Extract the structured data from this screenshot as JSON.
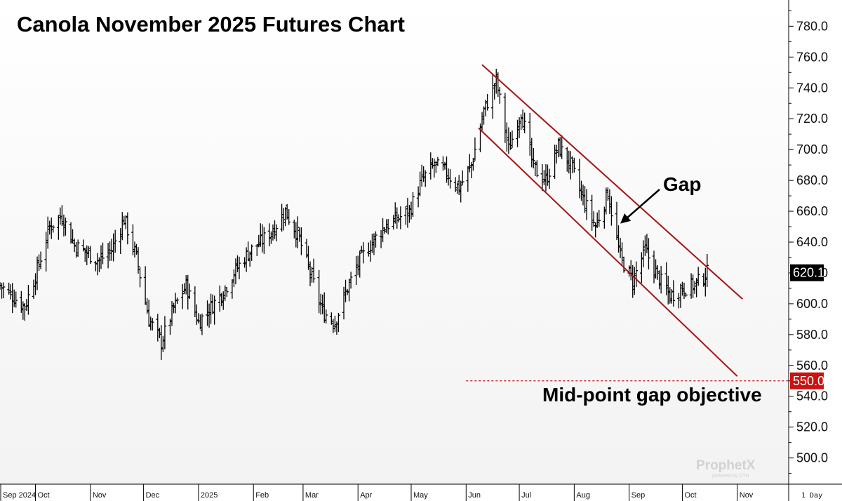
{
  "chart_data": {
    "type": "ohlc",
    "title": "Canola November 2025 Futures Chart",
    "interval_label": "1 Day",
    "ylim": [
      483,
      797
    ],
    "y_ticks": [
      500,
      520,
      540,
      560,
      580,
      600,
      620,
      640,
      660,
      680,
      700,
      720,
      740,
      760,
      780
    ],
    "y_tick_labels": [
      "500.0",
      "520.0",
      "540.0",
      "560.0",
      "580.0",
      "600.0",
      "620.0",
      "640.0",
      "660.0",
      "680.0",
      "700.0",
      "720.0",
      "740.0",
      "760.0",
      "780.0"
    ],
    "x_range": [
      "2024-09-11",
      "2025-11-30"
    ],
    "x_ticks": [
      {
        "date": "2024-09-01",
        "label": "Sep 2024"
      },
      {
        "date": "2024-10-01",
        "label": "Oct"
      },
      {
        "date": "2024-11-01",
        "label": "Nov"
      },
      {
        "date": "2024-12-01",
        "label": "Dec"
      },
      {
        "date": "2025-01-01",
        "label": "2025"
      },
      {
        "date": "2025-02-01",
        "label": "Feb"
      },
      {
        "date": "2025-03-01",
        "label": "Mar"
      },
      {
        "date": "2025-04-01",
        "label": "Apr"
      },
      {
        "date": "2025-05-01",
        "label": "May"
      },
      {
        "date": "2025-06-01",
        "label": "Jun"
      },
      {
        "date": "2025-07-01",
        "label": "Jul"
      },
      {
        "date": "2025-08-01",
        "label": "Aug"
      },
      {
        "date": "2025-09-01",
        "label": "Sep"
      },
      {
        "date": "2025-10-01",
        "label": "Oct"
      },
      {
        "date": "2025-11-01",
        "label": "Nov"
      }
    ],
    "approx_closes": [
      {
        "date": "2024-09-11",
        "close": 612
      },
      {
        "date": "2024-09-18",
        "close": 605
      },
      {
        "date": "2024-09-25",
        "close": 598
      },
      {
        "date": "2024-10-02",
        "close": 622
      },
      {
        "date": "2024-10-09",
        "close": 650
      },
      {
        "date": "2024-10-16",
        "close": 657
      },
      {
        "date": "2024-10-23",
        "close": 638
      },
      {
        "date": "2024-10-30",
        "close": 633
      },
      {
        "date": "2024-11-06",
        "close": 628
      },
      {
        "date": "2024-11-13",
        "close": 635
      },
      {
        "date": "2024-11-20",
        "close": 655
      },
      {
        "date": "2024-11-27",
        "close": 630
      },
      {
        "date": "2024-12-04",
        "close": 590
      },
      {
        "date": "2024-12-11",
        "close": 575
      },
      {
        "date": "2024-12-18",
        "close": 597
      },
      {
        "date": "2024-12-25",
        "close": 612
      },
      {
        "date": "2025-01-01",
        "close": 588
      },
      {
        "date": "2025-01-08",
        "close": 598
      },
      {
        "date": "2025-01-15",
        "close": 608
      },
      {
        "date": "2025-01-22",
        "close": 622
      },
      {
        "date": "2025-01-29",
        "close": 633
      },
      {
        "date": "2025-02-05",
        "close": 640
      },
      {
        "date": "2025-02-12",
        "close": 648
      },
      {
        "date": "2025-02-19",
        "close": 660
      },
      {
        "date": "2025-02-26",
        "close": 645
      },
      {
        "date": "2025-03-05",
        "close": 620
      },
      {
        "date": "2025-03-12",
        "close": 595
      },
      {
        "date": "2025-03-19",
        "close": 588
      },
      {
        "date": "2025-03-26",
        "close": 610
      },
      {
        "date": "2025-04-02",
        "close": 628
      },
      {
        "date": "2025-04-09",
        "close": 640
      },
      {
        "date": "2025-04-16",
        "close": 650
      },
      {
        "date": "2025-04-23",
        "close": 655
      },
      {
        "date": "2025-04-30",
        "close": 660
      },
      {
        "date": "2025-05-07",
        "close": 680
      },
      {
        "date": "2025-05-14",
        "close": 690
      },
      {
        "date": "2025-05-21",
        "close": 685
      },
      {
        "date": "2025-05-28",
        "close": 675
      },
      {
        "date": "2025-06-04",
        "close": 690
      },
      {
        "date": "2025-06-11",
        "close": 725
      },
      {
        "date": "2025-06-18",
        "close": 745
      },
      {
        "date": "2025-06-25",
        "close": 700
      },
      {
        "date": "2025-07-02",
        "close": 725
      },
      {
        "date": "2025-07-09",
        "close": 688
      },
      {
        "date": "2025-07-16",
        "close": 680
      },
      {
        "date": "2025-07-23",
        "close": 702
      },
      {
        "date": "2025-07-30",
        "close": 690
      },
      {
        "date": "2025-08-06",
        "close": 668
      },
      {
        "date": "2025-08-13",
        "close": 650
      },
      {
        "date": "2025-08-20",
        "close": 672
      },
      {
        "date": "2025-08-27",
        "close": 630
      },
      {
        "date": "2025-09-03",
        "close": 615
      },
      {
        "date": "2025-09-10",
        "close": 635
      },
      {
        "date": "2025-09-17",
        "close": 618
      },
      {
        "date": "2025-09-24",
        "close": 605
      },
      {
        "date": "2025-10-01",
        "close": 610
      },
      {
        "date": "2025-10-08",
        "close": 612
      },
      {
        "date": "2025-10-15",
        "close": 620
      }
    ],
    "last_price": 620.1,
    "last_price_label": "620.1",
    "channel": {
      "upper": [
        {
          "date": "2025-06-10",
          "price": 755
        },
        {
          "date": "2025-11-04",
          "price": 603
        }
      ],
      "lower": [
        {
          "date": "2025-06-08",
          "price": 714
        },
        {
          "date": "2025-11-01",
          "price": 553
        }
      ]
    },
    "gap_objective": {
      "price": 550.0,
      "label": "550.0",
      "from_date": "2025-06-01"
    },
    "annotations": [
      {
        "text": "Gap",
        "target": {
          "date": "2025-08-27",
          "price": 652
        }
      },
      {
        "text": "Mid-point gap objective"
      }
    ],
    "grid": false,
    "colors": {
      "bars": "#000000",
      "channel": "#a81212",
      "objective": "#cc1111",
      "last_price_bg": "#000000",
      "last_price_text": "#ffffff",
      "objective_bg": "#cc1111",
      "objective_text": "#ffffff"
    }
  },
  "branding": {
    "name": "ProphetX",
    "tagline": "powered by DTN"
  }
}
